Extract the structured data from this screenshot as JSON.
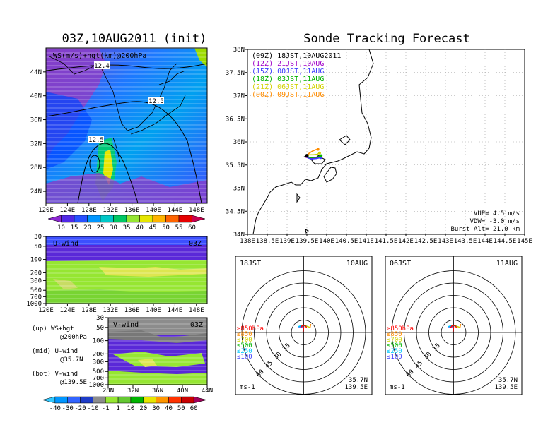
{
  "left_title": "03Z,10AUG2011 (init)",
  "right_title": "Sonde Tracking Forecast",
  "map_panel": {
    "label": "WS(m/s)+hgt(km)@200hPa",
    "lat_ticks": [
      "44N",
      "40N",
      "36N",
      "32N",
      "28N",
      "24N"
    ],
    "lon_ticks": [
      "120E",
      "124E",
      "128E",
      "132E",
      "136E",
      "140E",
      "144E",
      "148E"
    ],
    "contour_labels": [
      "12.4",
      "12.5",
      "12.5"
    ],
    "colorbar_ticks": [
      "10",
      "15",
      "20",
      "25",
      "30",
      "35",
      "40",
      "45",
      "50",
      "55",
      "60"
    ]
  },
  "u_panel": {
    "label": "U-wind",
    "time": "03Z",
    "y_ticks": [
      "30",
      "50",
      "100",
      "200",
      "300",
      "500",
      "700",
      "1000"
    ],
    "x_ticks": [
      "120E",
      "124E",
      "128E",
      "132E",
      "136E",
      "140E",
      "144E",
      "148E"
    ]
  },
  "v_panel": {
    "label": "V-wind",
    "time": "03Z",
    "y_ticks": [
      "30",
      "50",
      "100",
      "200",
      "300",
      "500",
      "700",
      "1000"
    ],
    "x_ticks": [
      "28N",
      "32N",
      "36N",
      "40N",
      "44N"
    ]
  },
  "notes": [
    "(up) WS+hgt",
    "@200hPa",
    "(mid) U-wind",
    "@35.7N",
    "(bot) V-wind",
    "@139.5E"
  ],
  "bottom_colorbar_ticks": [
    "-40",
    "-30",
    "-20",
    "-10",
    "-1",
    "1",
    "10",
    "20",
    "30",
    "40",
    "50",
    "60"
  ],
  "track_map": {
    "lat_ticks": [
      "38N",
      "37.5N",
      "37N",
      "36.5N",
      "36N",
      "35.5N",
      "35N",
      "34.5N",
      "34N"
    ],
    "lon_ticks": [
      "138E",
      "138.5E",
      "139E",
      "139.5E",
      "140E",
      "140.5E",
      "141E",
      "141.5E",
      "142E",
      "142.5E",
      "143E",
      "143.5E",
      "144E",
      "144.5E",
      "145E"
    ],
    "legend": [
      {
        "text": "(09Z) 18JST,10AUG2011",
        "color": "#000000"
      },
      {
        "text": "(12Z) 21JST,10AUG",
        "color": "#a000c8"
      },
      {
        "text": "(15Z) 00JST,11AUG",
        "color": "#3c3cff"
      },
      {
        "text": "(18Z) 03JST,11AUG",
        "color": "#00b400"
      },
      {
        "text": "(21Z) 06JST,11AUG",
        "color": "#d2d200"
      },
      {
        "text": "(00Z) 09JST,11AUG",
        "color": "#ff8c00"
      }
    ],
    "vup": "VUP= 4.5 m/s",
    "vdw": "VDW= -3.0 m/s",
    "burst": "Burst Alt= 21.0 km"
  },
  "hodo_left": {
    "time": "18JST",
    "date": "10AUG",
    "ring_labels": [
      "15",
      "30",
      "45",
      "60"
    ],
    "legend": [
      "≥850hPa",
      "≤850",
      "≤700",
      "≤500",
      "≤250",
      "≤100"
    ],
    "legend_colors": [
      "#ff0000",
      "#ff8c00",
      "#d2d200",
      "#00b400",
      "#00c8ff",
      "#3c3cff"
    ],
    "unit": "ms-1",
    "lat": "35.7N",
    "lon": "139.5E"
  },
  "hodo_right": {
    "time": "06JST",
    "date": "11AUG",
    "ring_labels": [
      "15",
      "30",
      "45",
      "60"
    ],
    "legend": [
      "≥850hPa",
      "≤850",
      "≤700",
      "≤500",
      "≤250",
      "≤100"
    ],
    "legend_colors": [
      "#ff0000",
      "#ff8c00",
      "#d2d200",
      "#00b400",
      "#00c8ff",
      "#3c3cff"
    ],
    "unit": "ms-1",
    "lat": "35.7N",
    "lon": "139.5E"
  },
  "chart_data": [
    {
      "type": "heatmap",
      "title": "WS(m/s)+hgt(km)@200hPa",
      "xlim": [
        120,
        150
      ],
      "ylim": [
        22,
        48
      ],
      "colorbar": [
        10,
        15,
        20,
        25,
        30,
        35,
        40,
        45,
        50,
        55,
        60
      ],
      "contours": [
        12.4,
        12.5,
        12.5
      ]
    },
    {
      "type": "heatmap",
      "title": "U-wind",
      "xlim": [
        120,
        150
      ],
      "y_levels_hPa": [
        30,
        50,
        100,
        200,
        300,
        500,
        700,
        1000
      ]
    },
    {
      "type": "heatmap",
      "title": "V-wind",
      "xlim": [
        28,
        44
      ],
      "y_levels_hPa": [
        30,
        50,
        100,
        200,
        300,
        500,
        700,
        1000
      ]
    },
    {
      "type": "line",
      "title": "Sonde Tracking Forecast",
      "xlim": [
        138,
        145
      ],
      "ylim": [
        34,
        38
      ],
      "launch": [
        139.5,
        35.7
      ],
      "series": [
        {
          "name": "(09Z) 18JST,10AUG2011",
          "x": [
            139.5,
            139.45,
            139.55,
            139.7,
            139.8
          ],
          "y": [
            35.7,
            35.68,
            35.65,
            35.66,
            35.68
          ]
        },
        {
          "name": "(12Z) 21JST,10AUG",
          "x": [
            139.5,
            139.48,
            139.58,
            139.72,
            139.82
          ],
          "y": [
            35.7,
            35.67,
            35.64,
            35.65,
            35.67
          ]
        },
        {
          "name": "(15Z) 00JST,11AUG",
          "x": [
            139.5,
            139.52,
            139.6,
            139.74,
            139.85
          ],
          "y": [
            35.7,
            35.66,
            35.63,
            35.64,
            35.66
          ]
        },
        {
          "name": "(18Z) 03JST,11AUG",
          "x": [
            139.5,
            139.5,
            139.6,
            139.75,
            139.86
          ],
          "y": [
            35.7,
            35.68,
            35.66,
            35.67,
            35.7
          ]
        },
        {
          "name": "(21Z) 06JST,11AUG",
          "x": [
            139.5,
            139.55,
            139.66,
            139.76,
            139.82
          ],
          "y": [
            35.7,
            35.72,
            35.72,
            35.73,
            35.76
          ]
        },
        {
          "name": "(00Z) 09JST,11AUG",
          "x": [
            139.5,
            139.55,
            139.64,
            139.72,
            139.78
          ],
          "y": [
            35.7,
            35.75,
            35.8,
            35.83,
            35.84
          ]
        }
      ]
    }
  ]
}
